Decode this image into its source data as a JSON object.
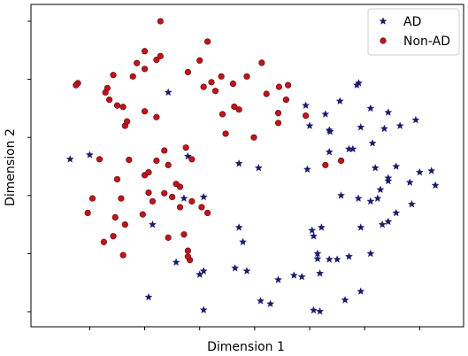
{
  "chart_data": {
    "type": "scatter",
    "xlabel": "Dimension 1",
    "ylabel": "Dimension 2",
    "xlim": [
      0,
      100
    ],
    "ylim": [
      0,
      100
    ],
    "x_ticks": [
      10,
      24,
      38,
      52,
      66,
      80,
      94
    ],
    "y_ticks": [
      0,
      20,
      40,
      60,
      80,
      100
    ],
    "tick_labels_shown": false,
    "grid": false,
    "legend_position": "top-right",
    "series": [
      {
        "name": "AD",
        "marker": "star",
        "color": "#1a1a6e",
        "points": [
          [
            5,
            52.5
          ],
          [
            10,
            54
          ],
          [
            30,
            75.5
          ],
          [
            35,
            53.5
          ],
          [
            48,
            51
          ],
          [
            53,
            49.5
          ],
          [
            39,
            39.5
          ],
          [
            34,
            39
          ],
          [
            26,
            30
          ],
          [
            48,
            29
          ],
          [
            49,
            24
          ],
          [
            32,
            17
          ],
          [
            39,
            14
          ],
          [
            38,
            12.8
          ],
          [
            47,
            15
          ],
          [
            50,
            14
          ],
          [
            62,
            12.5
          ],
          [
            64,
            12
          ],
          [
            56,
            2.7
          ],
          [
            53.5,
            3.7
          ],
          [
            39,
            0.6
          ],
          [
            25,
            5
          ],
          [
            65,
            71
          ],
          [
            70,
            68
          ],
          [
            73.7,
            72.5
          ],
          [
            78,
            78
          ],
          [
            78.5,
            78.7
          ],
          [
            81.5,
            70
          ],
          [
            86,
            68.6
          ],
          [
            85,
            63
          ],
          [
            79,
            63.5
          ],
          [
            82,
            58
          ],
          [
            77,
            56
          ],
          [
            71,
            62.5
          ],
          [
            71.2,
            62
          ],
          [
            65.4,
            49
          ],
          [
            66,
            64
          ],
          [
            71,
            55
          ],
          [
            76,
            56
          ],
          [
            82.7,
            49.5
          ],
          [
            89,
            64
          ],
          [
            93,
            66
          ],
          [
            94,
            48
          ],
          [
            97,
            48.5
          ],
          [
            98,
            43.5
          ],
          [
            91.5,
            44.5
          ],
          [
            88,
            50
          ],
          [
            86,
            45
          ],
          [
            86,
            46
          ],
          [
            84,
            42
          ],
          [
            92,
            37
          ],
          [
            81.5,
            38
          ],
          [
            78.4,
            39
          ],
          [
            74,
            40
          ],
          [
            88,
            34
          ],
          [
            79,
            29
          ],
          [
            84.5,
            30
          ],
          [
            83.3,
            39
          ],
          [
            86,
            31
          ],
          [
            69,
            29
          ],
          [
            66.6,
            28
          ],
          [
            68,
            18.2
          ],
          [
            71,
            18
          ],
          [
            76,
            19
          ],
          [
            81.5,
            20
          ],
          [
            73,
            18
          ],
          [
            68,
            20
          ],
          [
            68.6,
            13.2
          ],
          [
            67,
            26
          ],
          [
            79,
            7
          ],
          [
            75,
            4
          ],
          [
            67,
            0.5
          ],
          [
            68.6,
            0.1
          ],
          [
            58,
            11
          ]
        ]
      },
      {
        "name": "Non-AD",
        "marker": "circle",
        "color": "#c0141b",
        "points": [
          [
            28,
            100
          ],
          [
            24,
            89.7
          ],
          [
            24,
            83.6
          ],
          [
            22,
            85.6
          ],
          [
            27,
            86.7
          ],
          [
            16,
            81.5
          ],
          [
            21,
            81
          ],
          [
            28,
            88
          ],
          [
            40,
            93
          ],
          [
            38,
            86.5
          ],
          [
            35,
            82.5
          ],
          [
            41,
            79
          ],
          [
            39,
            77.4
          ],
          [
            43.5,
            81
          ],
          [
            46.5,
            78.5
          ],
          [
            50,
            81
          ],
          [
            55,
            75
          ],
          [
            53.8,
            85.7
          ],
          [
            58.2,
            77.4
          ],
          [
            60,
            73
          ],
          [
            42,
            76
          ],
          [
            43.8,
            68
          ],
          [
            46.8,
            70.6
          ],
          [
            48,
            69.6
          ],
          [
            44.6,
            61.3
          ],
          [
            51.8,
            60
          ],
          [
            58,
            68.4
          ],
          [
            60.5,
            78
          ],
          [
            65,
            67.5
          ],
          [
            58,
            65
          ],
          [
            24,
            69
          ],
          [
            27,
            67
          ],
          [
            15,
            73
          ],
          [
            14,
            75.5
          ],
          [
            14.5,
            77
          ],
          [
            17,
            71
          ],
          [
            19,
            64
          ],
          [
            18.5,
            70.5
          ],
          [
            19.5,
            65.5
          ],
          [
            12.5,
            52.5
          ],
          [
            20,
            52.3
          ],
          [
            24,
            47
          ],
          [
            29,
            55.5
          ],
          [
            27,
            52
          ],
          [
            25,
            48
          ],
          [
            34.5,
            56.5
          ],
          [
            30,
            50.5
          ],
          [
            36,
            52.5
          ],
          [
            33,
            43
          ],
          [
            29,
            40.8
          ],
          [
            32,
            44
          ],
          [
            26,
            38
          ],
          [
            23.5,
            33.5
          ],
          [
            25,
            41
          ],
          [
            31,
            39.5
          ],
          [
            33,
            36
          ],
          [
            36,
            38
          ],
          [
            38.5,
            36
          ],
          [
            40,
            34
          ],
          [
            17,
            45.6
          ],
          [
            18,
            39
          ],
          [
            10.7,
            39
          ],
          [
            9.5,
            34
          ],
          [
            16.5,
            32.5
          ],
          [
            18.5,
            19.5
          ],
          [
            13.6,
            24
          ],
          [
            16,
            26
          ],
          [
            19,
            30
          ],
          [
            35,
            21
          ],
          [
            35.5,
            17.8
          ],
          [
            30,
            25.5
          ],
          [
            35,
            19
          ],
          [
            34,
            26.6
          ],
          [
            7,
            78.7
          ],
          [
            6.5,
            78
          ],
          [
            70,
            50.5
          ],
          [
            74,
            52
          ]
        ]
      }
    ]
  }
}
